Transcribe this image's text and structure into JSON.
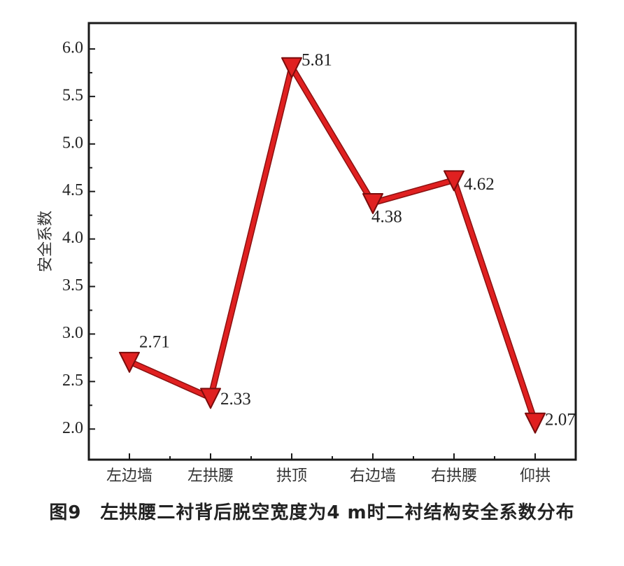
{
  "chart_data": {
    "type": "line",
    "categories": [
      "左边墙",
      "左拱腰",
      "拱顶",
      "右边墙",
      "右拱腰",
      "仰拱"
    ],
    "series": [
      {
        "values": [
          2.71,
          2.33,
          5.81,
          4.38,
          4.62,
          2.07
        ],
        "labels": [
          "2.71",
          "2.33",
          "5.81",
          "4.38",
          "4.62",
          "2.07"
        ],
        "color": "#e02020",
        "marker": "triangle-down"
      }
    ],
    "ylabel": "安全系数",
    "ylim": [
      1.7,
      6.25
    ],
    "yticks": [
      "2.0",
      "2.5",
      "3.0",
      "3.5",
      "4.0",
      "4.5",
      "5.0",
      "5.5",
      "6.0"
    ],
    "ytick_values": [
      2.0,
      2.5,
      3.0,
      3.5,
      4.0,
      4.5,
      5.0,
      5.5,
      6.0
    ],
    "grid": false,
    "legend": "none"
  },
  "caption": "图9　左拱腰二衬背后脱空宽度为4 m时二衬结构安全系数分布"
}
